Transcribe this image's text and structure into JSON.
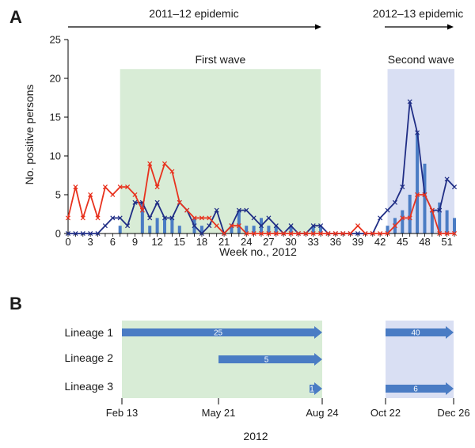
{
  "panel_a": {
    "letter": "A",
    "epidemic_1": "2011–12 epidemic",
    "epidemic_2": "2012–13 epidemic",
    "wave_1": "First wave",
    "wave_2": "Second  wave",
    "ylabel": "No. positive persons",
    "xlabel": "Week no., 2012",
    "colors": {
      "wave1_fill": "#d8ecd6",
      "wave2_fill": "#d9dff3",
      "bar": "#4a7cc4",
      "navy": "#1f2d85",
      "red": "#e8321e"
    }
  },
  "panel_b": {
    "letter": "B",
    "year": "2012",
    "lineage_labels": [
      "Lineage 1",
      "Lineage 2",
      "Lineage 3"
    ],
    "date_ticks": [
      "Feb 13",
      "May 21",
      "Aug 24",
      "Oct 22",
      "Dec 26"
    ],
    "colors": {
      "arrow": "#4a7cc4"
    }
  },
  "chart_data": [
    {
      "type": "line",
      "x": [
        0,
        1,
        2,
        3,
        4,
        5,
        6,
        7,
        8,
        9,
        10,
        11,
        12,
        13,
        14,
        15,
        16,
        17,
        18,
        19,
        20,
        21,
        22,
        23,
        24,
        25,
        26,
        27,
        28,
        29,
        30,
        31,
        32,
        33,
        34,
        35,
        36,
        37,
        38,
        39,
        40,
        41,
        42,
        43,
        44,
        45,
        46,
        47,
        48,
        49,
        50,
        51,
        52
      ],
      "xticks": [
        0,
        3,
        6,
        9,
        12,
        15,
        18,
        21,
        24,
        27,
        30,
        33,
        36,
        39,
        42,
        45,
        48,
        51
      ],
      "ylim": [
        0,
        25
      ],
      "yticks": [
        0,
        5,
        10,
        15,
        20,
        25
      ],
      "xlabel": "Week no., 2012",
      "ylabel": "No. positive persons",
      "grid": false,
      "shaded_regions": [
        {
          "label": "First wave",
          "x_range": [
            7,
            34
          ]
        },
        {
          "label": "Second  wave",
          "x_range": [
            43,
            52
          ]
        }
      ],
      "series": [
        {
          "kind": "bar",
          "values": [
            0,
            0,
            0,
            0,
            0,
            0,
            0,
            1,
            0,
            0,
            4,
            1,
            2,
            2,
            2,
            1,
            0,
            2,
            1,
            0,
            0,
            0,
            1,
            3,
            1,
            1,
            2,
            1,
            1,
            0,
            1,
            0,
            0,
            1,
            1,
            0,
            0,
            0,
            0,
            0,
            0,
            0,
            0,
            1,
            2,
            3,
            5,
            13,
            9,
            3,
            4,
            3,
            2
          ]
        },
        {
          "kind": "line",
          "color": "#1f2d85",
          "values": [
            0,
            0,
            0,
            0,
            0,
            1,
            2,
            2,
            1,
            4,
            4,
            2,
            4,
            2,
            2,
            4,
            3,
            1,
            0,
            1,
            3,
            0,
            1,
            3,
            3,
            2,
            1,
            2,
            1,
            0,
            1,
            0,
            0,
            1,
            1,
            0,
            0,
            0,
            0,
            0,
            0,
            0,
            2,
            3,
            4,
            6,
            17,
            13,
            5,
            3,
            3,
            7,
            6
          ]
        },
        {
          "kind": "line",
          "color": "#e8321e",
          "values": [
            2,
            6,
            2,
            5,
            2,
            6,
            5,
            6,
            6,
            5,
            3,
            9,
            6,
            9,
            8,
            4,
            3,
            2,
            2,
            2,
            1,
            0,
            1,
            1,
            0,
            0,
            0,
            0,
            0,
            0,
            0,
            0,
            0,
            0,
            0,
            0,
            0,
            0,
            0,
            1,
            0,
            0,
            0,
            0,
            1,
            2,
            2,
            5,
            5,
            3,
            0,
            0,
            0
          ]
        }
      ]
    },
    {
      "type": "bar",
      "orientation": "horizontal",
      "categories": [
        "Lineage 1",
        "Lineage 2",
        "Lineage 3"
      ],
      "year": "2012",
      "date_ticks": [
        "Feb 13",
        "May 21",
        "Aug 24",
        "Oct 22",
        "Dec 26"
      ],
      "shaded_regions": [
        [
          "Feb 13",
          "Aug 24"
        ],
        [
          "Oct 22",
          "Dec 26"
        ]
      ],
      "segments": [
        {
          "lineage": "Lineage 1",
          "start": "Feb 13",
          "end": "Aug 24",
          "count": "25"
        },
        {
          "lineage": "Lineage 1",
          "start": "Oct 22",
          "end": "Dec 26",
          "count": "40"
        },
        {
          "lineage": "Lineage 2",
          "start": "May 21",
          "end": "Aug 24",
          "count": "5"
        },
        {
          "lineage": "Lineage 3",
          "start": "Aug 15",
          "end": "Aug 24",
          "count": "1"
        },
        {
          "lineage": "Lineage 3",
          "start": "Oct 22",
          "end": "Dec 26",
          "count": "6"
        }
      ]
    }
  ]
}
